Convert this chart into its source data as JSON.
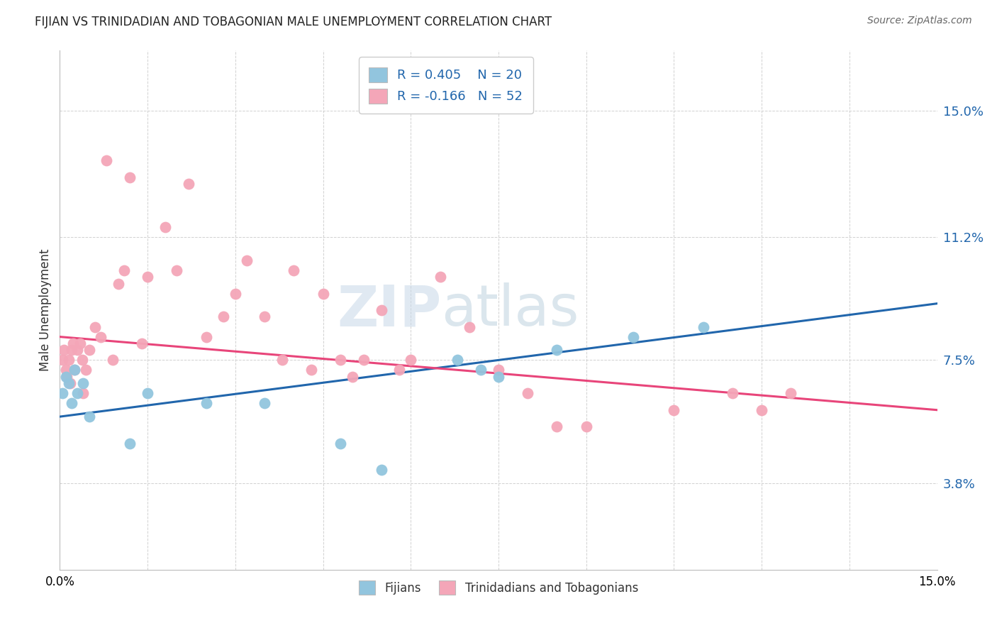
{
  "title": "FIJIAN VS TRINIDADIAN AND TOBAGONIAN MALE UNEMPLOYMENT CORRELATION CHART",
  "source": "Source: ZipAtlas.com",
  "ylabel": "Male Unemployment",
  "ytick_labels": [
    "15.0%",
    "11.2%",
    "7.5%",
    "3.8%"
  ],
  "ytick_values": [
    15.0,
    11.2,
    7.5,
    3.8
  ],
  "xmin": 0.0,
  "xmax": 15.0,
  "ymin": 1.2,
  "ymax": 16.8,
  "legend_r1": "R = 0.405",
  "legend_n1": "N = 20",
  "legend_r2": "R = -0.166",
  "legend_n2": "N = 52",
  "fijian_color": "#92c5de",
  "trinidadian_color": "#f4a6b8",
  "fijian_line_color": "#2166ac",
  "trinidadian_line_color": "#e8457a",
  "watermark_text": "ZIP",
  "watermark_text2": "atlas",
  "fijians_label": "Fijians",
  "trinidadians_label": "Trinidadians and Tobagonians",
  "fijian_x": [
    0.05,
    0.1,
    0.15,
    0.2,
    0.25,
    0.3,
    0.4,
    0.5,
    1.2,
    1.5,
    2.5,
    3.5,
    4.8,
    5.5,
    6.8,
    7.2,
    8.5,
    9.8,
    11.0,
    7.5
  ],
  "fijian_y": [
    6.5,
    7.0,
    6.8,
    6.2,
    7.2,
    6.5,
    6.8,
    5.8,
    5.0,
    6.5,
    6.2,
    6.2,
    5.0,
    4.2,
    7.5,
    7.2,
    7.8,
    8.2,
    8.5,
    7.0
  ],
  "trinidadian_x": [
    0.05,
    0.07,
    0.1,
    0.12,
    0.15,
    0.18,
    0.2,
    0.22,
    0.25,
    0.3,
    0.35,
    0.38,
    0.4,
    0.45,
    0.5,
    0.6,
    0.7,
    0.8,
    0.9,
    1.0,
    1.1,
    1.2,
    1.4,
    1.5,
    1.8,
    2.0,
    2.2,
    2.5,
    2.8,
    3.0,
    3.2,
    3.5,
    3.8,
    4.0,
    4.3,
    4.5,
    4.8,
    5.0,
    5.2,
    5.5,
    5.8,
    6.0,
    6.5,
    7.0,
    7.5,
    8.0,
    8.5,
    9.0,
    10.5,
    11.5,
    12.0,
    12.5
  ],
  "trinidadian_y": [
    7.5,
    7.8,
    7.2,
    7.0,
    7.5,
    6.8,
    7.8,
    8.0,
    7.2,
    7.8,
    8.0,
    7.5,
    6.5,
    7.2,
    7.8,
    8.5,
    8.2,
    13.5,
    7.5,
    9.8,
    10.2,
    13.0,
    8.0,
    10.0,
    11.5,
    10.2,
    12.8,
    8.2,
    8.8,
    9.5,
    10.5,
    8.8,
    7.5,
    10.2,
    7.2,
    9.5,
    7.5,
    7.0,
    7.5,
    9.0,
    7.2,
    7.5,
    10.0,
    8.5,
    7.2,
    6.5,
    5.5,
    5.5,
    6.0,
    6.5,
    6.0,
    6.5
  ]
}
